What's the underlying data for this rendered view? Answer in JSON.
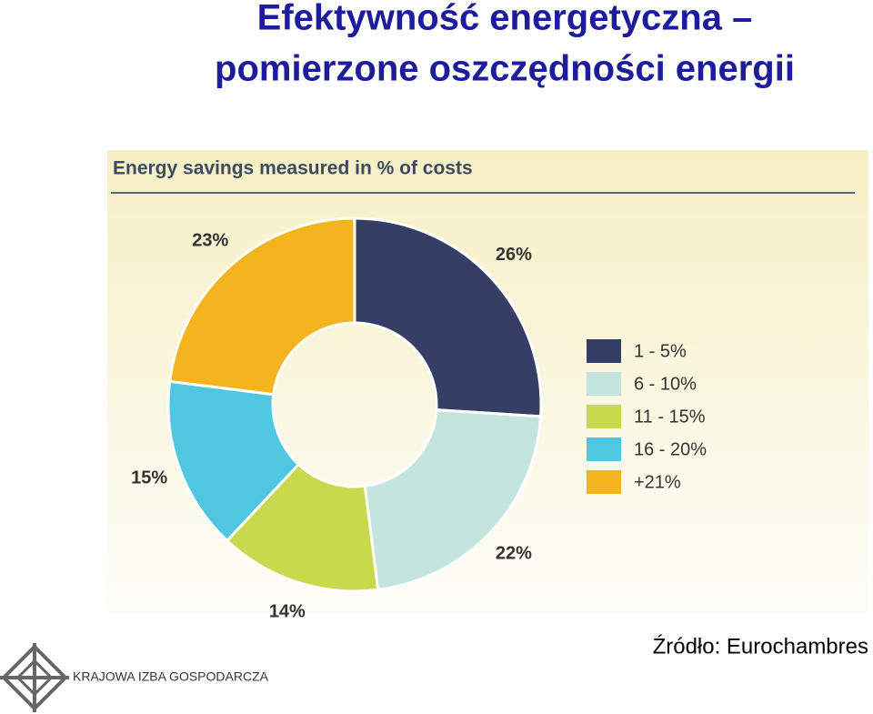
{
  "slide": {
    "title": [
      "Efektywność energetyczna –",
      "pomierzone oszczędności energii"
    ],
    "source": "Źródło: Eurochambres",
    "logo_text": "KRAJOWA IZBA GOSPODARCZA"
  },
  "chart_data": {
    "type": "donut",
    "title": "Energy savings measured in % of costs",
    "categories": [
      "1 - 5%",
      "6 - 10%",
      "11 - 15%",
      "16 - 20%",
      "+21%"
    ],
    "values": [
      26,
      22,
      14,
      15,
      23
    ],
    "value_labels": [
      "26%",
      "22%",
      "14%",
      "15%",
      "23%"
    ],
    "colors": [
      "#353f66",
      "#c3e5dd",
      "#c9d94c",
      "#4fc7e0",
      "#f4b41d"
    ],
    "legend": "right"
  }
}
